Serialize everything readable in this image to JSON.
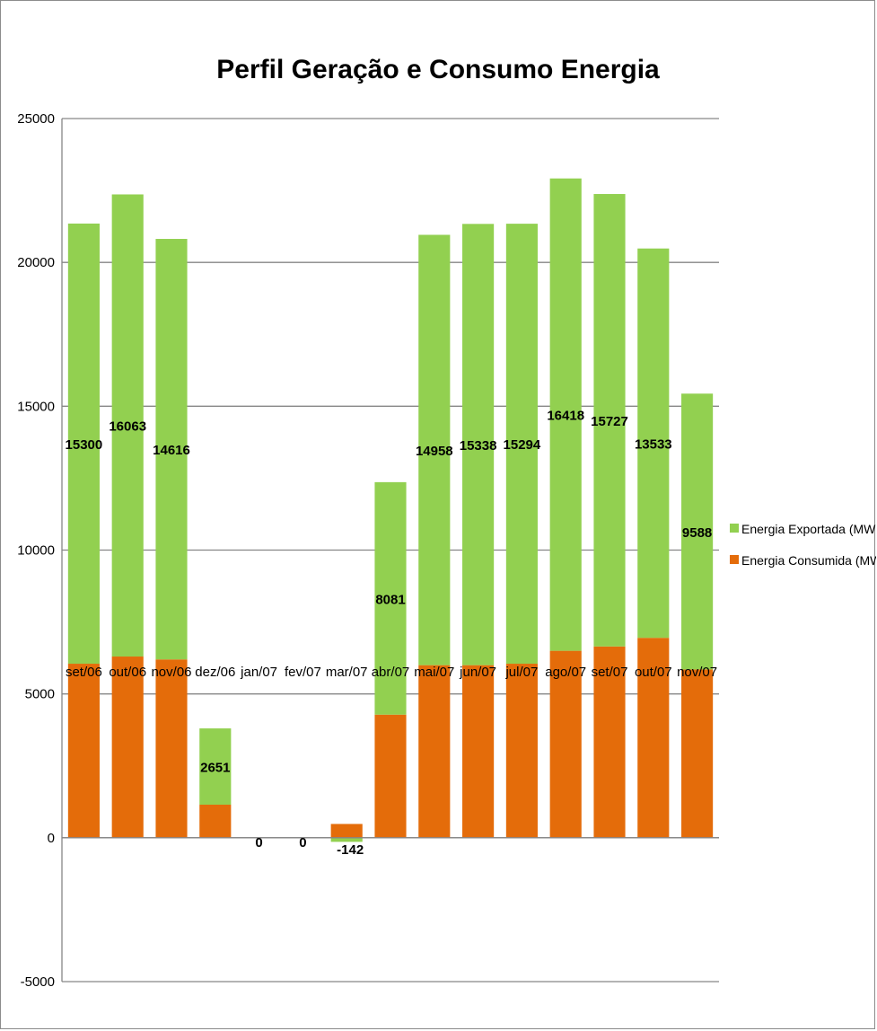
{
  "chart_data": {
    "type": "bar",
    "stacked": true,
    "title": "Perfil Geração e Consumo Energia",
    "xlabel": "",
    "ylabel": "",
    "categories": [
      "set/06",
      "out/06",
      "nov/06",
      "dez/06",
      "jan/07",
      "fev/07",
      "mar/07",
      "abr/07",
      "mai/07",
      "jun/07",
      "jul/07",
      "ago/07",
      "set/07",
      "out/07",
      "nov/07"
    ],
    "series": [
      {
        "name": "Energia Consumida (MWh)",
        "color": "#e46c0a",
        "values": [
          6050,
          6300,
          6200,
          1150,
          0,
          0,
          480,
          4280,
          6000,
          6000,
          6050,
          6500,
          6650,
          6950,
          5850
        ],
        "show_labels": false
      },
      {
        "name": "Energia Exportada (MWh)",
        "color": "#92d050",
        "values": [
          15300,
          16063,
          14616,
          2651,
          0,
          0,
          -142,
          8081,
          14958,
          15338,
          15294,
          16418,
          15727,
          13533,
          9588
        ],
        "show_labels": true
      }
    ],
    "ylim": [
      -5000,
      25000
    ],
    "yticks": [
      -5000,
      0,
      5000,
      10000,
      15000,
      20000,
      25000
    ],
    "grid": true,
    "legend_position": "right"
  }
}
